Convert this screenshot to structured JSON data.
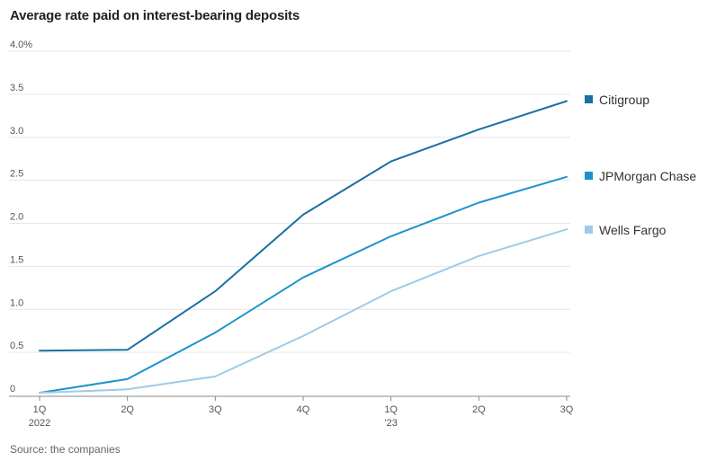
{
  "chart_data": {
    "type": "line",
    "title": "Average rate paid on interest-bearing deposits",
    "source": "Source: the companies",
    "categories": [
      "1Q",
      "2Q",
      "3Q",
      "4Q",
      "1Q",
      "2Q",
      "3Q"
    ],
    "category_sublabels": [
      "2022",
      "",
      "",
      "",
      "'23",
      "",
      ""
    ],
    "ylim": [
      0,
      4.0
    ],
    "yticks": [
      0,
      0.5,
      1.0,
      1.5,
      2.0,
      2.5,
      3.0,
      3.5,
      4.0
    ],
    "ytick_labels": [
      "0",
      "0.5",
      "1.0",
      "1.5",
      "2.0",
      "2.5",
      "3.0",
      "3.5",
      "4.0%"
    ],
    "grid": true,
    "legend_placement": "right",
    "series": [
      {
        "name": "Citigroup",
        "color": "#1a6fa3",
        "values": [
          0.52,
          0.53,
          1.21,
          2.1,
          2.72,
          3.09,
          3.42
        ]
      },
      {
        "name": "JPMorgan Chase",
        "color": "#1c93cf",
        "values": [
          0.03,
          0.19,
          0.73,
          1.37,
          1.85,
          2.24,
          2.54
        ]
      },
      {
        "name": "Wells Fargo",
        "color": "#9fcbe8",
        "values": [
          0.03,
          0.07,
          0.22,
          0.69,
          1.21,
          1.62,
          1.93
        ]
      }
    ]
  }
}
